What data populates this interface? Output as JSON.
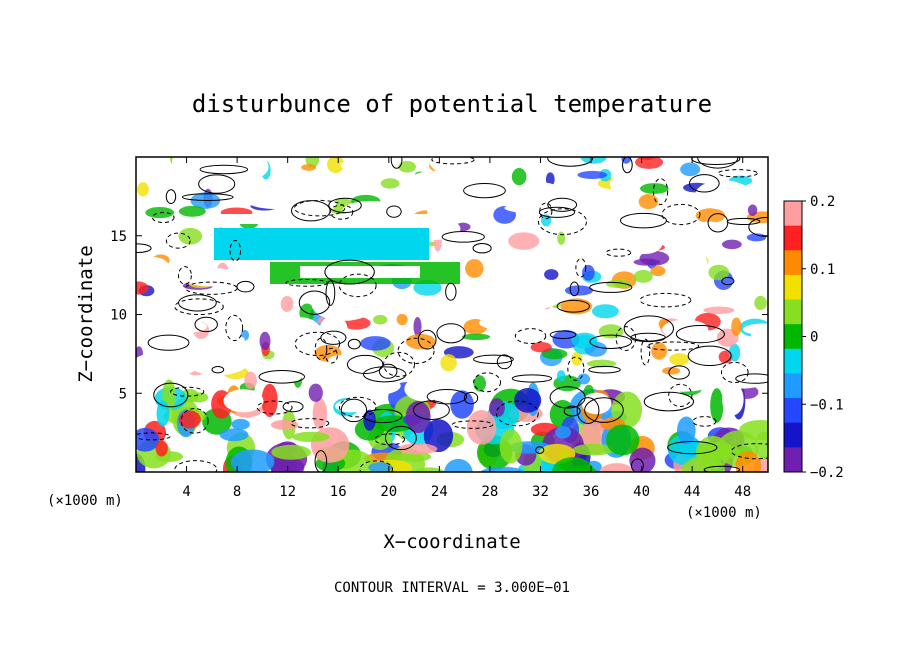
{
  "chart_data": {
    "type": "heatmap",
    "title": "disturbunce of potential temperature",
    "xlabel": "X−coordinate",
    "ylabel": "Z−coordinate",
    "x_unit_label": "(×1000 m)",
    "y_unit_label": "(×1000 m)",
    "xlim": [
      0,
      50
    ],
    "ylim": [
      0,
      20
    ],
    "x_ticks": [
      4,
      8,
      12,
      16,
      20,
      24,
      28,
      32,
      36,
      40,
      44,
      48
    ],
    "y_ticks": [
      5,
      10,
      15
    ],
    "colorbar": {
      "ticks": [
        "0.2",
        "0.1",
        "0",
        "−0.1",
        "−0.2"
      ],
      "vmin": -0.2,
      "vmax": 0.2,
      "colors": [
        "#ff9ea0",
        "#ff2020",
        "#ff8c00",
        "#f2e000",
        "#86df20",
        "#00b800",
        "#00d6ee",
        "#1f9cff",
        "#2448ff",
        "#1414c8",
        "#7020b0"
      ]
    },
    "contour_interval_text": "CONTOUR INTERVAL = 3.000E−01",
    "grid": false
  }
}
